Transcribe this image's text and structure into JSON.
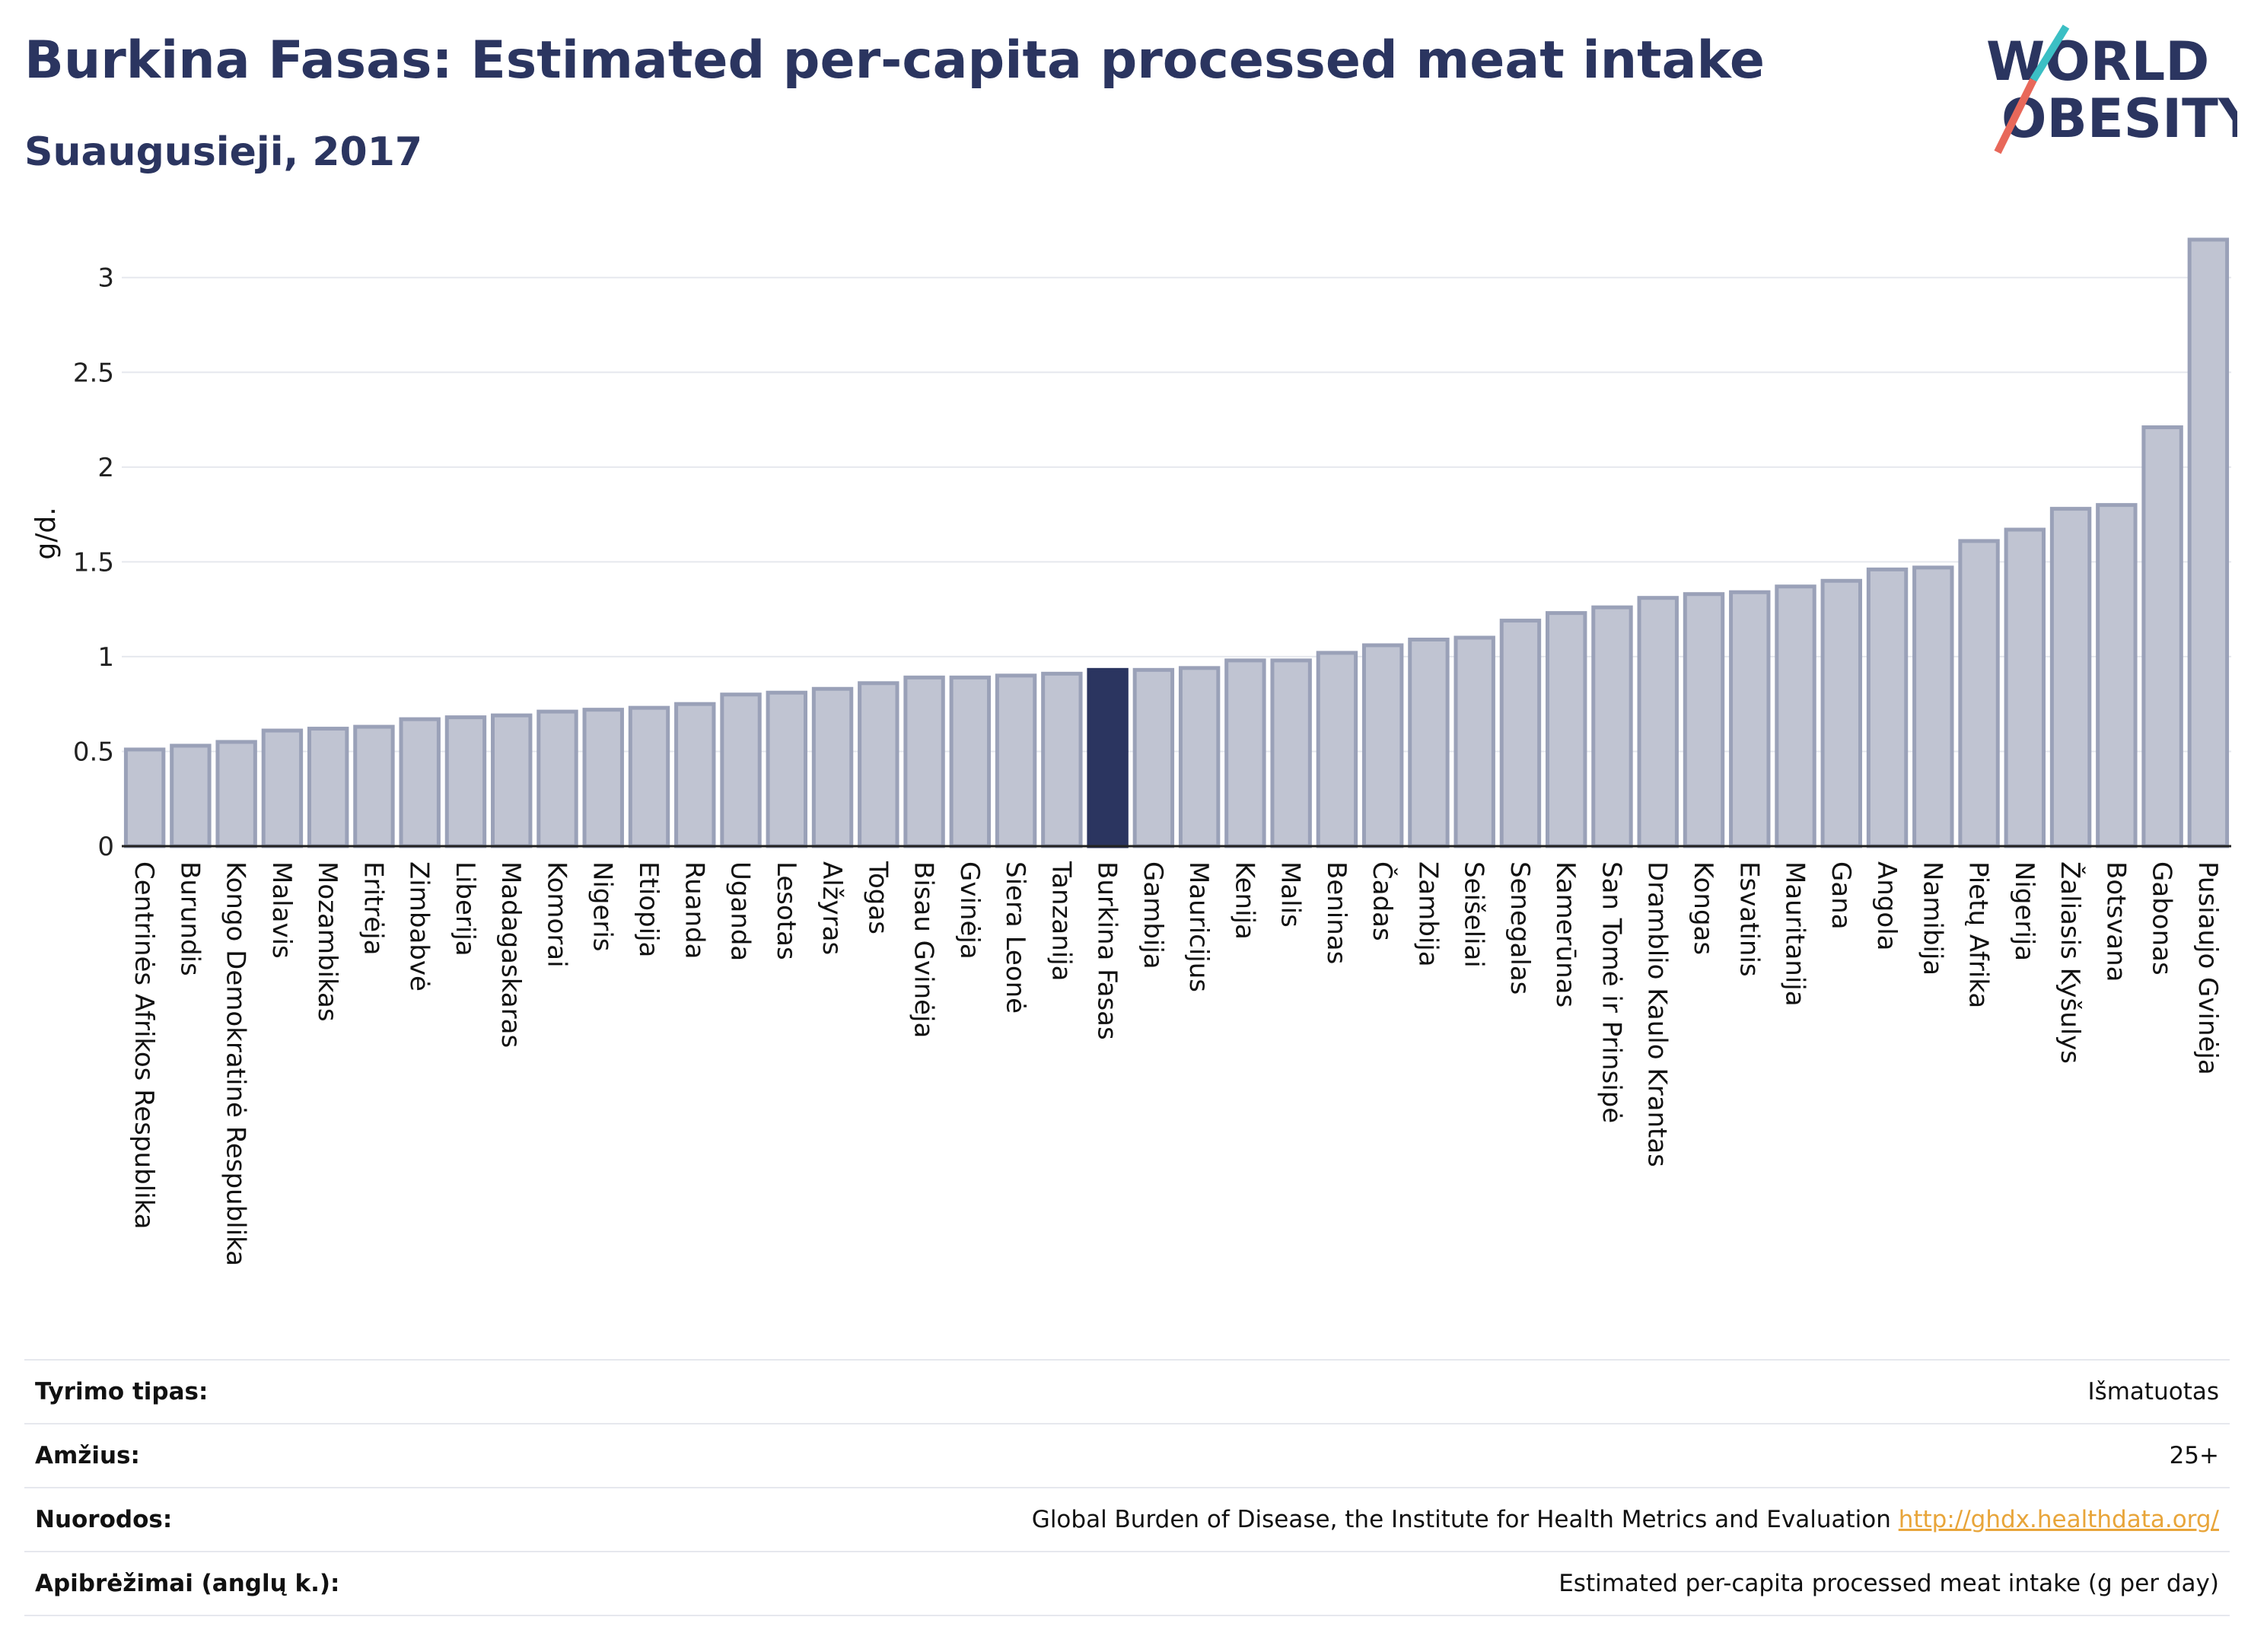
{
  "header": {
    "title": "Burkina Fasas: Estimated per-capita processed meat intake",
    "subtitle": "Suaugusieji, 2017"
  },
  "logo": {
    "line1": "WORLD",
    "line2": "OBESITY",
    "colors": {
      "text": "#2b3560",
      "slash_teal": "#3bbfc4",
      "slash_red": "#e8685a"
    }
  },
  "colors": {
    "bar_default": "#c0c4d2",
    "bar_border": "#9aa1b8",
    "bar_highlight": "#2b3560",
    "grid": "#e6e8ee",
    "title": "#2b3560"
  },
  "chart_data": {
    "type": "bar",
    "ylabel": "g/d.",
    "ylim": [
      0,
      3.3
    ],
    "yticks": [
      0,
      0.5,
      1,
      1.5,
      2,
      2.5,
      3
    ],
    "ytick_labels": [
      "0",
      "0.5",
      "1",
      "1.5",
      "2",
      "2.5",
      "3"
    ],
    "grid": true,
    "highlight": "Burkina Fasas",
    "categories": [
      "Centrinės Afrikos Respublika",
      "Burundis",
      "Kongo Demokratinė Respublika",
      "Malavis",
      "Mozambikas",
      "Eritrėja",
      "Zimbabvė",
      "Liberija",
      "Madagaskaras",
      "Komorai",
      "Nigeris",
      "Etiopija",
      "Ruanda",
      "Uganda",
      "Lesotas",
      "Alžyras",
      "Togas",
      "Bisau Gvinėja",
      "Gvinėja",
      "Siera Leonė",
      "Tanzanija",
      "Burkina Fasas",
      "Gambija",
      "Mauricijus",
      "Kenija",
      "Malis",
      "Beninas",
      "Čadas",
      "Zambija",
      "Seišeliai",
      "Senegalas",
      "Kamerūnas",
      "San Tomė ir Prinsipė",
      "Dramblio Kaulo Krantas",
      "Kongas",
      "Esvatinis",
      "Mauritanija",
      "Gana",
      "Angola",
      "Namibija",
      "Pietų Afrika",
      "Nigerija",
      "Žaliasis Kyšulys",
      "Botsvana",
      "Gabonas",
      "Pusiaujo Gvinėja"
    ],
    "values": [
      0.51,
      0.53,
      0.55,
      0.61,
      0.62,
      0.63,
      0.67,
      0.68,
      0.69,
      0.71,
      0.72,
      0.73,
      0.75,
      0.8,
      0.81,
      0.83,
      0.86,
      0.89,
      0.89,
      0.9,
      0.91,
      0.93,
      0.93,
      0.94,
      0.98,
      0.98,
      1.02,
      1.06,
      1.09,
      1.1,
      1.19,
      1.23,
      1.26,
      1.31,
      1.33,
      1.34,
      1.37,
      1.4,
      1.46,
      1.47,
      1.61,
      1.67,
      1.78,
      1.8,
      2.21,
      3.2
    ]
  },
  "info": {
    "rows": [
      {
        "label": "Tyrimo tipas:",
        "value": "Išmatuotas"
      },
      {
        "label": "Amžius:",
        "value": "25+"
      },
      {
        "label": "Nuorodos:",
        "value": "Global Burden of Disease, the Institute for Health Metrics and Evaluation",
        "link": "http://ghdx.healthdata.org/"
      },
      {
        "label": "Apibrėžimai (anglų k.):",
        "value": "Estimated per-capita processed meat intake (g per day)"
      }
    ]
  }
}
